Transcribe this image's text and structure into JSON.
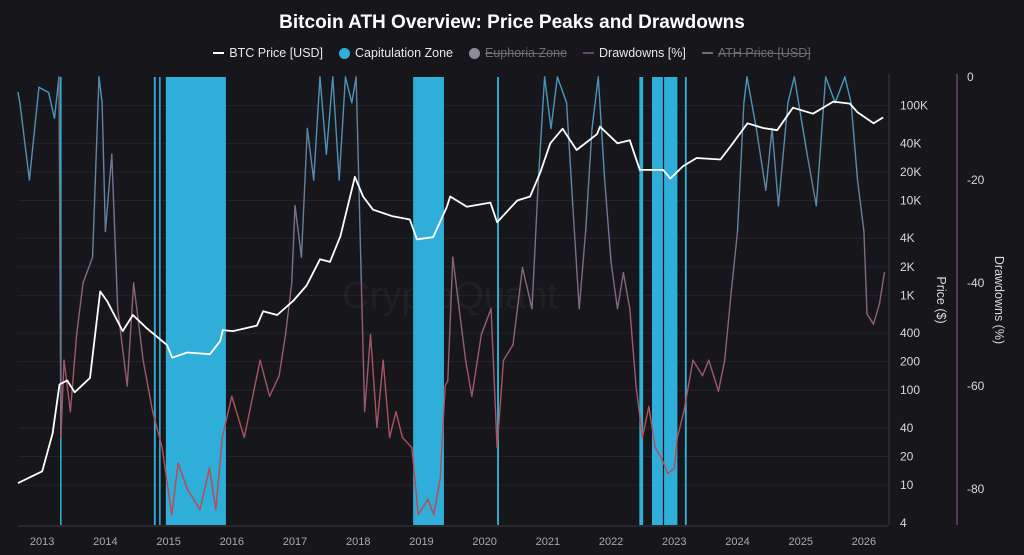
{
  "chart_data": {
    "type": "line",
    "title": "Bitcoin ATH Overview: Price Peaks and Drawdowns",
    "watermark": "CryptoQuant",
    "legend": [
      {
        "label": "BTC Price [USD]",
        "kind": "line",
        "color": "#ffffff",
        "active": true
      },
      {
        "label": "Capitulation Zone",
        "kind": "dot",
        "color": "#2eaed8",
        "active": true
      },
      {
        "label": "Euphoria Zone",
        "kind": "dot",
        "color": "#8e8d95",
        "active": false
      },
      {
        "label": "Drawdowns [%]",
        "kind": "line",
        "color": "#6a4477",
        "active": true
      },
      {
        "label": "ATH Price [USD]",
        "kind": "line",
        "color": "#6e6d74",
        "active": false
      }
    ],
    "legend_position": "top",
    "x_axis": {
      "type": "date",
      "range": [
        "2012-08-14",
        "2026-05-20"
      ],
      "ticks": [
        "2013",
        "2014",
        "2015",
        "2016",
        "2017",
        "2018",
        "2019",
        "2020",
        "2021",
        "2022",
        "2023",
        "2024",
        "2025",
        "2026"
      ]
    },
    "y_axis_price": {
      "label": "Price ($)",
      "scale": "log",
      "range": [
        3.8,
        200000
      ],
      "ticks": [
        {
          "v": 100000,
          "t": "100K"
        },
        {
          "v": 40000,
          "t": "40K"
        },
        {
          "v": 20000,
          "t": "20K"
        },
        {
          "v": 10000,
          "t": "10K"
        },
        {
          "v": 4000,
          "t": "4K"
        },
        {
          "v": 2000,
          "t": "2K"
        },
        {
          "v": 1000,
          "t": "1K"
        },
        {
          "v": 400,
          "t": "400"
        },
        {
          "v": 200,
          "t": "200"
        },
        {
          "v": 100,
          "t": "100"
        },
        {
          "v": 40,
          "t": "40"
        },
        {
          "v": 20,
          "t": "20"
        },
        {
          "v": 10,
          "t": "10"
        },
        {
          "v": 4,
          "t": "4"
        }
      ]
    },
    "y_axis_drawdown": {
      "label": "Drawdowns (%)",
      "scale": "linear",
      "range": [
        -87,
        0
      ],
      "ticks": [
        {
          "v": 0,
          "t": "0"
        },
        {
          "v": -20,
          "t": "-20"
        },
        {
          "v": -40,
          "t": "-40"
        },
        {
          "v": -60,
          "t": "-60"
        },
        {
          "v": -80,
          "t": "-80"
        }
      ]
    },
    "grid": true,
    "colors": {
      "drawdown_high": "#3d9fc6",
      "drawdown_mid": "#85677f",
      "drawdown_low": "#c4454b",
      "capitulation": "#2eaed8",
      "background": "#17161b"
    },
    "series": [
      {
        "name": "BTC Price [USD]",
        "points": [
          [
            "2012-08-14",
            10.5
          ],
          [
            "2013-01-01",
            14
          ],
          [
            "2013-03-02",
            35
          ],
          [
            "2013-04-11",
            115
          ],
          [
            "2013-05-25",
            127
          ],
          [
            "2013-07-08",
            95
          ],
          [
            "2013-10-04",
            135
          ],
          [
            "2013-12-02",
            1100
          ],
          [
            "2014-01-11",
            870
          ],
          [
            "2014-04-11",
            420
          ],
          [
            "2014-06-09",
            620
          ],
          [
            "2014-08-28",
            450
          ],
          [
            "2014-12-23",
            300
          ],
          [
            "2015-01-22",
            220
          ],
          [
            "2015-04-19",
            250
          ],
          [
            "2015-08-28",
            240
          ],
          [
            "2015-10-26",
            330
          ],
          [
            "2015-11-10",
            430
          ],
          [
            "2016-01-08",
            420
          ],
          [
            "2016-05-25",
            480
          ],
          [
            "2016-07-01",
            680
          ],
          [
            "2016-09-20",
            620
          ],
          [
            "2016-12-20",
            870
          ],
          [
            "2017-03-09",
            1270
          ],
          [
            "2017-05-25",
            2400
          ],
          [
            "2017-07-22",
            2250
          ],
          [
            "2017-09-20",
            4200
          ],
          [
            "2017-12-13",
            17700
          ],
          [
            "2018-01-29",
            11000
          ],
          [
            "2018-03-27",
            8000
          ],
          [
            "2018-07-19",
            6800
          ],
          [
            "2018-10-26",
            6300
          ],
          [
            "2018-12-06",
            3900
          ],
          [
            "2019-03-09",
            4100
          ],
          [
            "2019-05-28",
            8600
          ],
          [
            "2019-06-16",
            11000
          ],
          [
            "2019-09-20",
            8600
          ],
          [
            "2020-02-03",
            9500
          ],
          [
            "2020-03-13",
            5900
          ],
          [
            "2020-07-08",
            10000
          ],
          [
            "2020-09-20",
            11000
          ],
          [
            "2020-11-17",
            19500
          ],
          [
            "2021-01-15",
            40000
          ],
          [
            "2021-03-27",
            57000
          ],
          [
            "2021-06-16",
            34000
          ],
          [
            "2021-10-12",
            50000
          ],
          [
            "2021-10-29",
            60000
          ],
          [
            "2022-02-07",
            40000
          ],
          [
            "2022-04-19",
            43000
          ],
          [
            "2022-06-16",
            21000
          ],
          [
            "2022-10-29",
            21000
          ],
          [
            "2022-12-09",
            17000
          ],
          [
            "2023-02-21",
            23000
          ],
          [
            "2023-05-10",
            28000
          ],
          [
            "2023-09-24",
            27000
          ],
          [
            "2023-11-21",
            37000
          ],
          [
            "2024-02-28",
            65000
          ],
          [
            "2024-05-28",
            58000
          ],
          [
            "2024-08-18",
            55000
          ],
          [
            "2024-11-17",
            95000
          ],
          [
            "2025-03-13",
            82000
          ],
          [
            "2025-07-08",
            110000
          ],
          [
            "2025-10-12",
            105000
          ],
          [
            "2025-11-25",
            85000
          ],
          [
            "2026-02-25",
            65000
          ],
          [
            "2026-04-22",
            75000
          ]
        ]
      },
      {
        "name": "Drawdowns [%]",
        "points": [
          [
            "2012-08-14",
            -3
          ],
          [
            "2012-08-25",
            -5
          ],
          [
            "2012-10-19",
            -20
          ],
          [
            "2012-12-13",
            -2
          ],
          [
            "2013-02-07",
            -3
          ],
          [
            "2013-03-13",
            -8
          ],
          [
            "2013-04-08",
            0
          ],
          [
            "2013-04-19",
            -70
          ],
          [
            "2013-05-07",
            -55
          ],
          [
            "2013-06-13",
            -65
          ],
          [
            "2013-07-19",
            -50
          ],
          [
            "2013-08-25",
            -40
          ],
          [
            "2013-10-19",
            -35
          ],
          [
            "2013-11-25",
            0
          ],
          [
            "2013-12-13",
            -5
          ],
          [
            "2014-01-01",
            -30
          ],
          [
            "2014-02-07",
            -15
          ],
          [
            "2014-03-13",
            -45
          ],
          [
            "2014-05-07",
            -60
          ],
          [
            "2014-06-13",
            -40
          ],
          [
            "2014-08-07",
            -55
          ],
          [
            "2014-10-01",
            -65
          ],
          [
            "2014-11-25",
            -72
          ],
          [
            "2015-01-19",
            -85
          ],
          [
            "2015-02-25",
            -75
          ],
          [
            "2015-04-19",
            -80
          ],
          [
            "2015-07-01",
            -84
          ],
          [
            "2015-08-25",
            -76
          ],
          [
            "2015-10-01",
            -84
          ],
          [
            "2015-11-07",
            -70
          ],
          [
            "2016-01-01",
            -62
          ],
          [
            "2016-03-13",
            -70
          ],
          [
            "2016-06-13",
            -55
          ],
          [
            "2016-08-07",
            -62
          ],
          [
            "2016-10-01",
            -58
          ],
          [
            "2016-11-07",
            -50
          ],
          [
            "2016-12-13",
            -40
          ],
          [
            "2017-01-01",
            -25
          ],
          [
            "2017-02-07",
            -35
          ],
          [
            "2017-03-13",
            -10
          ],
          [
            "2017-04-19",
            -20
          ],
          [
            "2017-05-25",
            0
          ],
          [
            "2017-07-01",
            -15
          ],
          [
            "2017-08-07",
            0
          ],
          [
            "2017-09-13",
            -20
          ],
          [
            "2017-10-19",
            0
          ],
          [
            "2017-11-25",
            -5
          ],
          [
            "2017-12-20",
            0
          ],
          [
            "2018-01-19",
            -40
          ],
          [
            "2018-02-07",
            -65
          ],
          [
            "2018-03-13",
            -50
          ],
          [
            "2018-04-19",
            -68
          ],
          [
            "2018-05-25",
            -55
          ],
          [
            "2018-07-01",
            -70
          ],
          [
            "2018-08-07",
            -65
          ],
          [
            "2018-09-13",
            -70
          ],
          [
            "2018-11-07",
            -72
          ],
          [
            "2018-12-13",
            -85
          ],
          [
            "2019-02-07",
            -82
          ],
          [
            "2019-03-13",
            -85
          ],
          [
            "2019-04-19",
            -78
          ],
          [
            "2019-05-18",
            -60
          ],
          [
            "2019-06-02",
            -59
          ],
          [
            "2019-07-01",
            -35
          ],
          [
            "2019-08-07",
            -45
          ],
          [
            "2019-09-13",
            -55
          ],
          [
            "2019-10-19",
            -62
          ],
          [
            "2019-12-13",
            -50
          ],
          [
            "2020-02-07",
            -45
          ],
          [
            "2020-03-13",
            -72
          ],
          [
            "2020-04-19",
            -55
          ],
          [
            "2020-06-13",
            -52
          ],
          [
            "2020-08-07",
            -37
          ],
          [
            "2020-10-01",
            -45
          ],
          [
            "2020-11-07",
            -20
          ],
          [
            "2020-12-13",
            0
          ],
          [
            "2021-01-19",
            -10
          ],
          [
            "2021-02-25",
            0
          ],
          [
            "2021-04-19",
            -5
          ],
          [
            "2021-05-25",
            -25
          ],
          [
            "2021-07-01",
            -45
          ],
          [
            "2021-08-07",
            -30
          ],
          [
            "2021-09-13",
            -10
          ],
          [
            "2021-10-19",
            0
          ],
          [
            "2021-11-25",
            -20
          ],
          [
            "2022-01-01",
            -36
          ],
          [
            "2022-02-07",
            -45
          ],
          [
            "2022-03-13",
            -38
          ],
          [
            "2022-04-19",
            -45
          ],
          [
            "2022-05-25",
            -60
          ],
          [
            "2022-07-01",
            -70
          ],
          [
            "2022-08-07",
            -64
          ],
          [
            "2022-09-13",
            -72
          ],
          [
            "2022-10-19",
            -74
          ],
          [
            "2022-11-25",
            -77
          ],
          [
            "2023-01-01",
            -76
          ],
          [
            "2023-01-19",
            -70
          ],
          [
            "2023-02-25",
            -65
          ],
          [
            "2023-04-19",
            -55
          ],
          [
            "2023-06-13",
            -58
          ],
          [
            "2023-07-19",
            -55
          ],
          [
            "2023-09-13",
            -61
          ],
          [
            "2023-10-19",
            -55
          ],
          [
            "2023-11-25",
            -42
          ],
          [
            "2024-01-01",
            -30
          ],
          [
            "2024-02-07",
            -5
          ],
          [
            "2024-02-25",
            0
          ],
          [
            "2024-04-19",
            -10
          ],
          [
            "2024-06-13",
            -22
          ],
          [
            "2024-07-19",
            -10
          ],
          [
            "2024-08-25",
            -25
          ],
          [
            "2024-10-19",
            -5
          ],
          [
            "2024-11-25",
            0
          ],
          [
            "2025-02-07",
            -15
          ],
          [
            "2025-04-01",
            -25
          ],
          [
            "2025-05-25",
            0
          ],
          [
            "2025-07-19",
            -5
          ],
          [
            "2025-09-13",
            0
          ],
          [
            "2025-10-19",
            -5
          ],
          [
            "2025-11-25",
            -20
          ],
          [
            "2026-01-01",
            -30
          ],
          [
            "2026-01-19",
            -46
          ],
          [
            "2026-02-25",
            -48
          ],
          [
            "2026-04-01",
            -44
          ],
          [
            "2026-04-29",
            -38
          ]
        ]
      }
    ],
    "capitulation_zones": [
      [
        "2013-04-14",
        "2013-04-23"
      ],
      [
        "2014-10-08",
        "2014-10-19"
      ],
      [
        "2014-11-07",
        "2014-11-16"
      ],
      [
        "2014-12-16",
        "2015-11-28"
      ],
      [
        "2018-11-14",
        "2019-05-11"
      ],
      [
        "2020-03-13",
        "2020-03-24"
      ],
      [
        "2022-06-13",
        "2022-07-05"
      ],
      [
        "2022-08-25",
        "2022-10-27"
      ],
      [
        "2022-11-03",
        "2023-01-19"
      ],
      [
        "2023-03-03",
        "2023-03-14"
      ]
    ]
  }
}
